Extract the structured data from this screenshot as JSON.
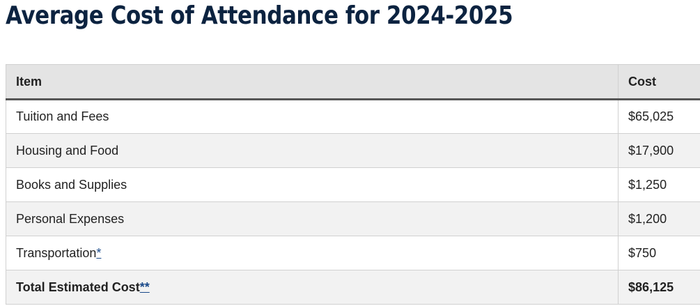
{
  "page": {
    "title": "Average Cost of Attendance for 2024-2025"
  },
  "table": {
    "headers": {
      "item": "Item",
      "cost": "Cost"
    },
    "rows": [
      {
        "item": "Tuition and Fees",
        "cost": "$65,025",
        "footnote": ""
      },
      {
        "item": "Housing and Food",
        "cost": "$17,900",
        "footnote": ""
      },
      {
        "item": "Books and Supplies",
        "cost": "$1,250",
        "footnote": ""
      },
      {
        "item": "Personal Expenses",
        "cost": "$1,200",
        "footnote": ""
      },
      {
        "item": "Transportation",
        "cost": "$750",
        "footnote": "*"
      }
    ],
    "total": {
      "item": "Total Estimated Cost",
      "footnote": "**",
      "cost": "$86,125"
    }
  },
  "colors": {
    "title": "#0c2340",
    "header_bg": "#e4e4e4",
    "stripe_bg": "#f2f2f2",
    "link": "#1a4a8a"
  }
}
